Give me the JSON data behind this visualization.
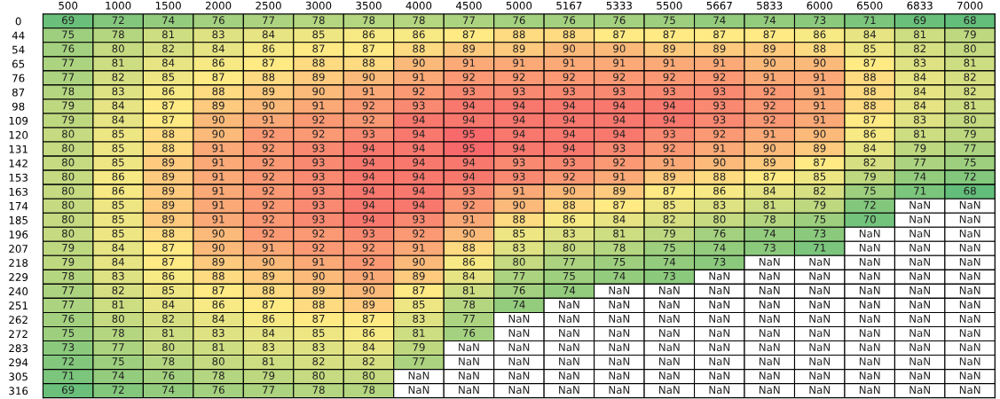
{
  "chart_data": {
    "type": "heatmap",
    "categories": [
      "500",
      "1000",
      "1500",
      "2000",
      "2500",
      "3000",
      "3500",
      "4000",
      "4500",
      "5000",
      "5167",
      "5333",
      "5500",
      "5667",
      "5833",
      "6000",
      "6500",
      "6833",
      "7000"
    ],
    "y_categories": [
      "0",
      "44",
      "54",
      "65",
      "76",
      "87",
      "98",
      "109",
      "120",
      "131",
      "142",
      "153",
      "163",
      "174",
      "185",
      "196",
      "207",
      "218",
      "229",
      "240",
      "251",
      "262",
      "272",
      "283",
      "294",
      "305",
      "316"
    ],
    "cells": [
      [
        69,
        72,
        74,
        76,
        77,
        78,
        78,
        78,
        77,
        76,
        76,
        76,
        75,
        74,
        74,
        73,
        71,
        69,
        68
      ],
      [
        75,
        78,
        81,
        83,
        84,
        85,
        86,
        86,
        87,
        88,
        88,
        87,
        87,
        87,
        87,
        86,
        84,
        81,
        79
      ],
      [
        76,
        80,
        82,
        84,
        86,
        87,
        87,
        88,
        89,
        89,
        90,
        90,
        89,
        89,
        89,
        88,
        85,
        82,
        80
      ],
      [
        77,
        81,
        84,
        86,
        87,
        88,
        88,
        90,
        91,
        91,
        91,
        91,
        91,
        91,
        90,
        90,
        87,
        83,
        81
      ],
      [
        77,
        82,
        85,
        87,
        88,
        89,
        90,
        91,
        92,
        92,
        92,
        92,
        92,
        92,
        91,
        91,
        88,
        84,
        82
      ],
      [
        78,
        83,
        86,
        88,
        89,
        90,
        91,
        92,
        93,
        93,
        93,
        93,
        93,
        93,
        92,
        91,
        88,
        84,
        82
      ],
      [
        79,
        84,
        87,
        89,
        90,
        91,
        92,
        93,
        94,
        94,
        94,
        94,
        94,
        93,
        92,
        91,
        88,
        84,
        81
      ],
      [
        79,
        84,
        87,
        90,
        91,
        92,
        92,
        94,
        94,
        94,
        94,
        94,
        94,
        93,
        92,
        91,
        87,
        83,
        80
      ],
      [
        80,
        85,
        88,
        90,
        92,
        92,
        93,
        94,
        95,
        94,
        94,
        94,
        93,
        92,
        91,
        90,
        86,
        81,
        79
      ],
      [
        80,
        85,
        88,
        91,
        92,
        93,
        94,
        94,
        95,
        94,
        94,
        93,
        92,
        91,
        90,
        89,
        84,
        79,
        77
      ],
      [
        80,
        85,
        89,
        91,
        92,
        93,
        94,
        94,
        94,
        93,
        93,
        92,
        91,
        90,
        89,
        87,
        82,
        77,
        75
      ],
      [
        80,
        86,
        89,
        91,
        92,
        93,
        94,
        94,
        94,
        93,
        92,
        91,
        89,
        88,
        87,
        85,
        79,
        74,
        72
      ],
      [
        80,
        86,
        89,
        91,
        92,
        93,
        94,
        94,
        93,
        91,
        90,
        89,
        87,
        86,
        84,
        82,
        75,
        71,
        68
      ],
      [
        80,
        85,
        89,
        91,
        92,
        93,
        94,
        94,
        92,
        90,
        88,
        87,
        85,
        83,
        81,
        79,
        72,
        null,
        null
      ],
      [
        80,
        85,
        89,
        91,
        92,
        93,
        94,
        93,
        91,
        88,
        86,
        84,
        82,
        80,
        78,
        75,
        70,
        null,
        null
      ],
      [
        80,
        85,
        88,
        90,
        92,
        92,
        93,
        92,
        90,
        85,
        83,
        81,
        79,
        76,
        74,
        73,
        null,
        null,
        null
      ],
      [
        79,
        84,
        87,
        90,
        91,
        92,
        92,
        91,
        88,
        83,
        80,
        78,
        75,
        74,
        73,
        71,
        null,
        null,
        null
      ],
      [
        79,
        84,
        87,
        89,
        90,
        91,
        92,
        90,
        86,
        80,
        77,
        75,
        74,
        73,
        null,
        null,
        null,
        null,
        null
      ],
      [
        78,
        83,
        86,
        88,
        89,
        90,
        91,
        89,
        84,
        77,
        75,
        74,
        73,
        null,
        null,
        null,
        null,
        null,
        null
      ],
      [
        77,
        82,
        85,
        87,
        88,
        89,
        90,
        87,
        81,
        76,
        74,
        null,
        null,
        null,
        null,
        null,
        null,
        null,
        null
      ],
      [
        77,
        81,
        84,
        86,
        87,
        88,
        89,
        85,
        78,
        74,
        null,
        null,
        null,
        null,
        null,
        null,
        null,
        null,
        null
      ],
      [
        76,
        80,
        82,
        84,
        86,
        87,
        87,
        83,
        77,
        null,
        null,
        null,
        null,
        null,
        null,
        null,
        null,
        null,
        null
      ],
      [
        75,
        78,
        81,
        83,
        84,
        85,
        86,
        81,
        76,
        null,
        null,
        null,
        null,
        null,
        null,
        null,
        null,
        null,
        null
      ],
      [
        73,
        77,
        80,
        81,
        83,
        83,
        84,
        79,
        null,
        null,
        null,
        null,
        null,
        null,
        null,
        null,
        null,
        null,
        null
      ],
      [
        72,
        75,
        78,
        80,
        81,
        82,
        82,
        77,
        null,
        null,
        null,
        null,
        null,
        null,
        null,
        null,
        null,
        null,
        null
      ],
      [
        71,
        74,
        76,
        78,
        79,
        80,
        80,
        null,
        null,
        null,
        null,
        null,
        null,
        null,
        null,
        null,
        null,
        null,
        null
      ],
      [
        69,
        72,
        74,
        76,
        77,
        78,
        78,
        null,
        null,
        null,
        null,
        null,
        null,
        null,
        null,
        null,
        null,
        null,
        null
      ]
    ],
    "cell_labels": [
      [
        "69",
        "72",
        "74",
        "76",
        "77",
        "78",
        "78",
        "78",
        "77",
        "76",
        "76",
        "76",
        "75",
        "74",
        "74",
        "73",
        "71",
        "69",
        "68"
      ],
      [
        "75",
        "78",
        "81",
        "83",
        "84",
        "85",
        "86",
        "86",
        "87",
        "88",
        "88",
        "87",
        "87",
        "87",
        "87",
        "86",
        "84",
        "81",
        "79"
      ],
      [
        "76",
        "80",
        "82",
        "84",
        "86",
        "87",
        "87",
        "88",
        "89",
        "89",
        "90",
        "90",
        "89",
        "89",
        "89",
        "88",
        "85",
        "82",
        "80"
      ],
      [
        "77",
        "81",
        "84",
        "86",
        "87",
        "88",
        "88",
        "90",
        "91",
        "91",
        "91",
        "91",
        "91",
        "91",
        "90",
        "90",
        "87",
        "83",
        "81"
      ],
      [
        "77",
        "82",
        "85",
        "87",
        "88",
        "89",
        "90",
        "91",
        "92",
        "92",
        "92",
        "92",
        "92",
        "92",
        "91",
        "91",
        "88",
        "84",
        "82"
      ],
      [
        "78",
        "83",
        "86",
        "88",
        "89",
        "90",
        "91",
        "92",
        "93",
        "93",
        "93",
        "93",
        "93",
        "93",
        "92",
        "91",
        "88",
        "84",
        "82"
      ],
      [
        "79",
        "84",
        "87",
        "89",
        "90",
        "91",
        "92",
        "93",
        "94",
        "94",
        "94",
        "94",
        "94",
        "93",
        "92",
        "91",
        "88",
        "84",
        "81"
      ],
      [
        "79",
        "84",
        "87",
        "90",
        "91",
        "92",
        "92",
        "94",
        "94",
        "94",
        "94",
        "94",
        "94",
        "93",
        "92",
        "91",
        "87",
        "83",
        "80"
      ],
      [
        "80",
        "85",
        "88",
        "90",
        "92",
        "92",
        "93",
        "94",
        "95",
        "94",
        "94",
        "94",
        "93",
        "92",
        "91",
        "90",
        "86",
        "81",
        "79"
      ],
      [
        "80",
        "85",
        "88",
        "91",
        "92",
        "93",
        "94",
        "94",
        "95",
        "94",
        "94",
        "93",
        "92",
        "91",
        "90",
        "89",
        "84",
        "79",
        "77"
      ],
      [
        "80",
        "85",
        "89",
        "91",
        "92",
        "93",
        "94",
        "94",
        "94",
        "93",
        "93",
        "92",
        "91",
        "90",
        "89",
        "87",
        "82",
        "77",
        "75"
      ],
      [
        "80",
        "86",
        "89",
        "91",
        "92",
        "93",
        "94",
        "94",
        "94",
        "93",
        "92",
        "91",
        "89",
        "88",
        "87",
        "85",
        "79",
        "74",
        "72"
      ],
      [
        "80",
        "86",
        "89",
        "91",
        "92",
        "93",
        "94",
        "94",
        "93",
        "91",
        "90",
        "89",
        "87",
        "86",
        "84",
        "82",
        "75",
        "71",
        "68"
      ],
      [
        "80",
        "85",
        "89",
        "91",
        "92",
        "93",
        "94",
        "94",
        "92",
        "90",
        "88",
        "87",
        "85",
        "83",
        "81",
        "79",
        "72",
        "NaN",
        "NaN"
      ],
      [
        "80",
        "85",
        "89",
        "91",
        "92",
        "93",
        "94",
        "93",
        "91",
        "88",
        "86",
        "84",
        "82",
        "80",
        "78",
        "75",
        "70",
        "NaN",
        "NaN"
      ],
      [
        "80",
        "85",
        "88",
        "90",
        "92",
        "92",
        "93",
        "92",
        "90",
        "85",
        "83",
        "81",
        "79",
        "76",
        "74",
        "73",
        "NaN",
        "NaN",
        "NaN"
      ],
      [
        "79",
        "84",
        "87",
        "90",
        "91",
        "92",
        "92",
        "91",
        "88",
        "83",
        "80",
        "78",
        "75",
        "74",
        "73",
        "71",
        "NaN",
        "NaN",
        "NaN"
      ],
      [
        "79",
        "84",
        "87",
        "89",
        "90",
        "91",
        "92",
        "90",
        "86",
        "80",
        "77",
        "75",
        "74",
        "73",
        "NaN",
        "NaN",
        "NaN",
        "NaN",
        "NaN"
      ],
      [
        "78",
        "83",
        "86",
        "88",
        "89",
        "90",
        "91",
        "89",
        "84",
        "77",
        "75",
        "74",
        "73",
        "NaN",
        "NaN",
        "NaN",
        "NaN",
        "NaN",
        "NaN"
      ],
      [
        "77",
        "82",
        "85",
        "87",
        "88",
        "89",
        "90",
        "87",
        "81",
        "76",
        "74",
        "NaN",
        "NaN",
        "NaN",
        "NaN",
        "NaN",
        "NaN",
        "NaN",
        "NaN"
      ],
      [
        "77",
        "81",
        "84",
        "86",
        "87",
        "88",
        "89",
        "85",
        "78",
        "74",
        "NaN",
        "NaN",
        "NaN",
        "NaN",
        "NaN",
        "NaN",
        "NaN",
        "NaN",
        "NaN"
      ],
      [
        "76",
        "80",
        "82",
        "84",
        "86",
        "87",
        "87",
        "83",
        "77",
        "NaN",
        "NaN",
        "NaN",
        "NaN",
        "NaN",
        "NaN",
        "NaN",
        "NaN",
        "NaN",
        "NaN"
      ],
      [
        "75",
        "78",
        "81",
        "83",
        "84",
        "85",
        "86",
        "81",
        "76",
        "NaN",
        "NaN",
        "NaN",
        "NaN",
        "NaN",
        "NaN",
        "NaN",
        "NaN",
        "NaN",
        "NaN"
      ],
      [
        "73",
        "77",
        "80",
        "81",
        "83",
        "83",
        "84",
        "79",
        "NaN",
        "NaN",
        "NaN",
        "NaN",
        "NaN",
        "NaN",
        "NaN",
        "NaN",
        "NaN",
        "NaN",
        "NaN"
      ],
      [
        "72",
        "75",
        "78",
        "80",
        "81",
        "82",
        "82",
        "77",
        "NaN",
        "NaN",
        "NaN",
        "NaN",
        "NaN",
        "NaN",
        "NaN",
        "NaN",
        "NaN",
        "NaN",
        "NaN"
      ],
      [
        "71",
        "74",
        "76",
        "78",
        "79",
        "80",
        "80",
        "NaN",
        "NaN",
        "NaN",
        "NaN",
        "NaN",
        "NaN",
        "NaN",
        "NaN",
        "NaN",
        "NaN",
        "NaN",
        "NaN"
      ],
      [
        "69",
        "72",
        "74",
        "76",
        "77",
        "78",
        "78",
        "NaN",
        "NaN",
        "NaN",
        "NaN",
        "NaN",
        "NaN",
        "NaN",
        "NaN",
        "NaN",
        "NaN",
        "NaN",
        "NaN"
      ]
    ]
  }
}
